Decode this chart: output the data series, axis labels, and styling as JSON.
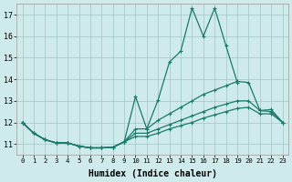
{
  "xlabel": "Humidex (Indice chaleur)",
  "xlim": [
    -0.5,
    23.5
  ],
  "ylim": [
    10.5,
    17.5
  ],
  "yticks": [
    11,
    12,
    13,
    14,
    15,
    16,
    17
  ],
  "xticks": [
    0,
    1,
    2,
    3,
    4,
    5,
    6,
    7,
    8,
    9,
    10,
    11,
    12,
    13,
    14,
    15,
    16,
    17,
    18,
    19,
    20,
    21,
    22,
    23
  ],
  "background_color": "#ceeaea",
  "grid_color": "#aacccc",
  "line_color": "#1a7a6a",
  "lines": [
    {
      "x": [
        0,
        1,
        2,
        3,
        4,
        5,
        6,
        7,
        8,
        9,
        10,
        11,
        12,
        13,
        14,
        15,
        16,
        17,
        18,
        19,
        20,
        21,
        22,
        23
      ],
      "y": [
        12.0,
        11.5,
        11.2,
        11.05,
        11.05,
        10.9,
        10.82,
        10.82,
        10.85,
        11.1,
        13.2,
        11.7,
        13.05,
        14.8,
        15.3,
        17.3,
        16.0,
        17.3,
        15.55,
        13.85,
        null,
        null,
        null,
        null
      ],
      "marker": true
    },
    {
      "x": [
        0,
        1,
        2,
        3,
        4,
        5,
        6,
        7,
        8,
        9,
        10,
        11,
        12,
        13,
        14,
        15,
        16,
        17,
        18,
        19,
        20,
        21,
        22,
        23
      ],
      "y": [
        12.0,
        11.5,
        11.2,
        11.05,
        11.05,
        10.9,
        10.82,
        10.82,
        10.85,
        11.1,
        11.7,
        11.7,
        12.1,
        12.4,
        12.7,
        13.0,
        13.3,
        13.5,
        13.7,
        13.9,
        13.85,
        12.55,
        12.6,
        12.0
      ],
      "marker": false
    },
    {
      "x": [
        0,
        1,
        2,
        3,
        4,
        5,
        6,
        7,
        8,
        9,
        10,
        11,
        12,
        13,
        14,
        15,
        16,
        17,
        18,
        19,
        20,
        21,
        22,
        23
      ],
      "y": [
        12.0,
        11.5,
        11.2,
        11.05,
        11.05,
        10.9,
        10.82,
        10.82,
        10.85,
        11.1,
        11.5,
        11.5,
        11.7,
        11.9,
        12.1,
        12.3,
        12.5,
        12.7,
        12.85,
        13.0,
        13.0,
        12.55,
        12.5,
        12.0
      ],
      "marker": false
    },
    {
      "x": [
        0,
        1,
        2,
        3,
        4,
        5,
        6,
        7,
        8,
        9,
        10,
        11,
        12,
        13,
        14,
        15,
        16,
        17,
        18,
        19,
        20,
        21,
        22,
        23
      ],
      "y": [
        12.0,
        11.5,
        11.2,
        11.05,
        11.05,
        10.9,
        10.82,
        10.82,
        10.85,
        11.1,
        11.35,
        11.35,
        11.5,
        11.7,
        11.85,
        12.0,
        12.2,
        12.35,
        12.5,
        12.65,
        12.7,
        12.4,
        12.4,
        12.0
      ],
      "marker": false
    }
  ],
  "linewidth": 0.9,
  "markersize": 3.5,
  "markerstyle": "+"
}
